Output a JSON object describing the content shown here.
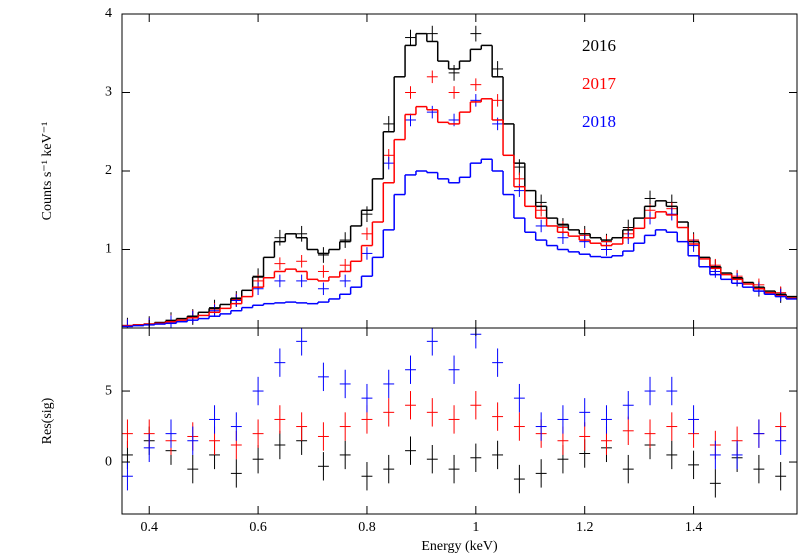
{
  "chart_data": [
    {
      "type": "line",
      "ylabel": "Counts s⁻¹ keV⁻¹",
      "legend": "upper right",
      "xlim": [
        0.35,
        1.59
      ],
      "ylim": [
        0,
        4
      ],
      "xticks": [
        0.4,
        0.6,
        0.8,
        1.0,
        1.2,
        1.4
      ],
      "yticks": [
        1,
        2,
        3,
        4
      ],
      "x": [
        0.36,
        0.38,
        0.4,
        0.42,
        0.44,
        0.46,
        0.48,
        0.5,
        0.52,
        0.54,
        0.56,
        0.58,
        0.6,
        0.62,
        0.64,
        0.66,
        0.68,
        0.7,
        0.72,
        0.74,
        0.76,
        0.78,
        0.8,
        0.82,
        0.84,
        0.86,
        0.88,
        0.9,
        0.92,
        0.94,
        0.96,
        0.98,
        1.0,
        1.02,
        1.04,
        1.06,
        1.08,
        1.1,
        1.12,
        1.14,
        1.16,
        1.18,
        1.2,
        1.22,
        1.24,
        1.26,
        1.28,
        1.3,
        1.32,
        1.34,
        1.36,
        1.38,
        1.4,
        1.42,
        1.44,
        1.46,
        1.48,
        1.5,
        1.52,
        1.54,
        1.56,
        1.58
      ],
      "series": [
        {
          "name": "2016",
          "color": "#000000",
          "style": "errorbar",
          "error": 0.1,
          "xerr": 0.01,
          "x": [
            0.36,
            0.4,
            0.44,
            0.48,
            0.52,
            0.56,
            0.6,
            0.64,
            0.68,
            0.72,
            0.76,
            0.8,
            0.84,
            0.88,
            0.92,
            0.96,
            1.0,
            1.04,
            1.08,
            1.12,
            1.16,
            1.2,
            1.24,
            1.28,
            1.32,
            1.36,
            1.4,
            1.44,
            1.48,
            1.52,
            1.56
          ],
          "values": [
            0.03,
            0.05,
            0.1,
            0.14,
            0.26,
            0.37,
            0.66,
            1.15,
            1.2,
            0.93,
            1.12,
            1.45,
            2.6,
            3.7,
            3.75,
            3.25,
            3.75,
            3.3,
            2.05,
            1.6,
            1.3,
            1.2,
            1.1,
            1.28,
            1.65,
            1.6,
            1.12,
            0.77,
            0.63,
            0.5,
            0.42
          ]
        },
        {
          "name": "2017",
          "color": "#ff0000",
          "style": "errorbar",
          "error": 0.08,
          "xerr": 0.01,
          "x": [
            0.36,
            0.4,
            0.44,
            0.48,
            0.52,
            0.56,
            0.6,
            0.64,
            0.68,
            0.72,
            0.76,
            0.8,
            0.84,
            0.88,
            0.92,
            0.96,
            1.0,
            1.04,
            1.08,
            1.12,
            1.16,
            1.2,
            1.24,
            1.28,
            1.32,
            1.36,
            1.4,
            1.44,
            1.48,
            1.52,
            1.56
          ],
          "values": [
            0.03,
            0.05,
            0.09,
            0.15,
            0.24,
            0.36,
            0.6,
            0.82,
            0.85,
            0.72,
            0.8,
            1.2,
            2.2,
            3.0,
            3.2,
            3.0,
            3.1,
            2.9,
            1.9,
            1.5,
            1.28,
            1.18,
            1.1,
            1.2,
            1.5,
            1.52,
            1.12,
            0.8,
            0.66,
            0.55,
            0.45
          ]
        },
        {
          "name": "2018",
          "color": "#0000ff",
          "style": "errorbar",
          "error": 0.08,
          "xerr": 0.01,
          "x": [
            0.36,
            0.4,
            0.44,
            0.48,
            0.52,
            0.56,
            0.6,
            0.64,
            0.68,
            0.72,
            0.76,
            0.8,
            0.84,
            0.88,
            0.92,
            0.96,
            1.0,
            1.04,
            1.08,
            1.12,
            1.16,
            1.2,
            1.24,
            1.28,
            1.32,
            1.36,
            1.4,
            1.44,
            1.48,
            1.52,
            1.56
          ],
          "values": [
            0.03,
            0.05,
            0.08,
            0.14,
            0.22,
            0.35,
            0.5,
            0.6,
            0.6,
            0.5,
            0.6,
            0.95,
            2.1,
            2.65,
            2.75,
            2.65,
            2.9,
            2.6,
            1.75,
            1.3,
            1.15,
            1.1,
            1.0,
            1.15,
            1.4,
            1.45,
            1.05,
            0.72,
            0.62,
            0.5,
            0.42
          ]
        },
        {
          "color": "#000000",
          "style": "step",
          "values": [
            0.03,
            0.04,
            0.05,
            0.07,
            0.09,
            0.12,
            0.15,
            0.2,
            0.25,
            0.3,
            0.38,
            0.48,
            0.65,
            0.9,
            1.1,
            1.2,
            1.15,
            1.0,
            0.95,
            1.0,
            1.1,
            1.3,
            1.5,
            1.9,
            2.5,
            3.2,
            3.6,
            3.75,
            3.65,
            3.4,
            3.3,
            3.4,
            3.55,
            3.6,
            3.2,
            2.6,
            2.1,
            1.75,
            1.55,
            1.4,
            1.32,
            1.25,
            1.2,
            1.15,
            1.12,
            1.15,
            1.25,
            1.4,
            1.55,
            1.62,
            1.55,
            1.35,
            1.1,
            0.9,
            0.78,
            0.7,
            0.64,
            0.58,
            0.52,
            0.47,
            0.43,
            0.4
          ]
        },
        {
          "color": "#ff0000",
          "style": "step",
          "values": [
            0.03,
            0.04,
            0.05,
            0.06,
            0.08,
            0.1,
            0.13,
            0.16,
            0.2,
            0.25,
            0.31,
            0.4,
            0.52,
            0.64,
            0.72,
            0.75,
            0.72,
            0.62,
            0.6,
            0.65,
            0.72,
            0.85,
            1.05,
            1.35,
            1.85,
            2.4,
            2.72,
            2.82,
            2.78,
            2.62,
            2.6,
            2.75,
            2.88,
            2.92,
            2.65,
            2.2,
            1.8,
            1.55,
            1.4,
            1.3,
            1.22,
            1.17,
            1.12,
            1.08,
            1.05,
            1.07,
            1.15,
            1.27,
            1.4,
            1.48,
            1.44,
            1.28,
            1.07,
            0.88,
            0.76,
            0.68,
            0.62,
            0.56,
            0.5,
            0.45,
            0.41,
            0.38
          ]
        },
        {
          "color": "#0000ff",
          "style": "step",
          "values": [
            0.02,
            0.03,
            0.04,
            0.05,
            0.06,
            0.08,
            0.1,
            0.12,
            0.15,
            0.18,
            0.22,
            0.26,
            0.29,
            0.31,
            0.32,
            0.33,
            0.32,
            0.31,
            0.33,
            0.37,
            0.43,
            0.52,
            0.66,
            0.9,
            1.25,
            1.7,
            1.95,
            2.0,
            1.98,
            1.9,
            1.85,
            1.92,
            2.1,
            2.15,
            2.0,
            1.7,
            1.4,
            1.22,
            1.12,
            1.05,
            1.0,
            0.97,
            0.94,
            0.91,
            0.9,
            0.92,
            0.98,
            1.08,
            1.18,
            1.25,
            1.22,
            1.1,
            0.92,
            0.78,
            0.68,
            0.62,
            0.57,
            0.52,
            0.47,
            0.43,
            0.4,
            0.37
          ]
        }
      ]
    },
    {
      "type": "line",
      "ylabel": "Res(sig)",
      "xlabel": "Energy (keV)",
      "xlim": [
        0.35,
        1.59
      ],
      "ylim": [
        -3.66,
        9.44
      ],
      "xticks": [
        0.4,
        0.6,
        0.8,
        1.0,
        1.2,
        1.4
      ],
      "yticks": [
        0,
        5
      ],
      "x": [
        0.36,
        0.4,
        0.44,
        0.48,
        0.52,
        0.56,
        0.6,
        0.64,
        0.68,
        0.72,
        0.76,
        0.8,
        0.84,
        0.88,
        0.92,
        0.96,
        1.0,
        1.04,
        1.08,
        1.12,
        1.16,
        1.2,
        1.24,
        1.28,
        1.32,
        1.36,
        1.4,
        1.44,
        1.48,
        1.52,
        1.56
      ],
      "series": [
        {
          "color": "#000000",
          "style": "errorbar",
          "error": 1,
          "xerr": 0.01,
          "values": [
            0.5,
            1.5,
            0.8,
            -0.5,
            0.5,
            -0.8,
            0.2,
            1.2,
            1.5,
            -0.3,
            0.5,
            -1.0,
            -0.5,
            0.8,
            0.2,
            -0.5,
            0.3,
            0.5,
            -1.2,
            -0.8,
            0.2,
            0.6,
            1.0,
            -0.5,
            1.2,
            0.5,
            -0.2,
            -1.5,
            0.3,
            -0.5,
            -1.0
          ]
        },
        {
          "color": "#ff0000",
          "style": "errorbar",
          "error": 1,
          "xerr": 0.01,
          "values": [
            2,
            2,
            1.5,
            1.8,
            1.5,
            1.2,
            2,
            3,
            2.5,
            1.8,
            2.5,
            3,
            3.5,
            4,
            3.5,
            3,
            4,
            3.2,
            2.5,
            2,
            1.5,
            1.8,
            1.5,
            2.2,
            2,
            2.5,
            2,
            1.2,
            1.5,
            2,
            2.5
          ]
        },
        {
          "color": "#0000ff",
          "style": "errorbar",
          "error": 1,
          "xerr": 0.01,
          "values": [
            -1,
            1,
            2,
            1.5,
            3,
            2.5,
            5,
            7,
            8.5,
            6,
            5.5,
            4.5,
            5.5,
            6.5,
            8.5,
            6.5,
            9,
            7,
            4.5,
            2.5,
            3,
            3.5,
            3,
            4,
            5,
            5,
            3,
            0.5,
            0.5,
            2,
            1.5
          ]
        }
      ]
    }
  ]
}
